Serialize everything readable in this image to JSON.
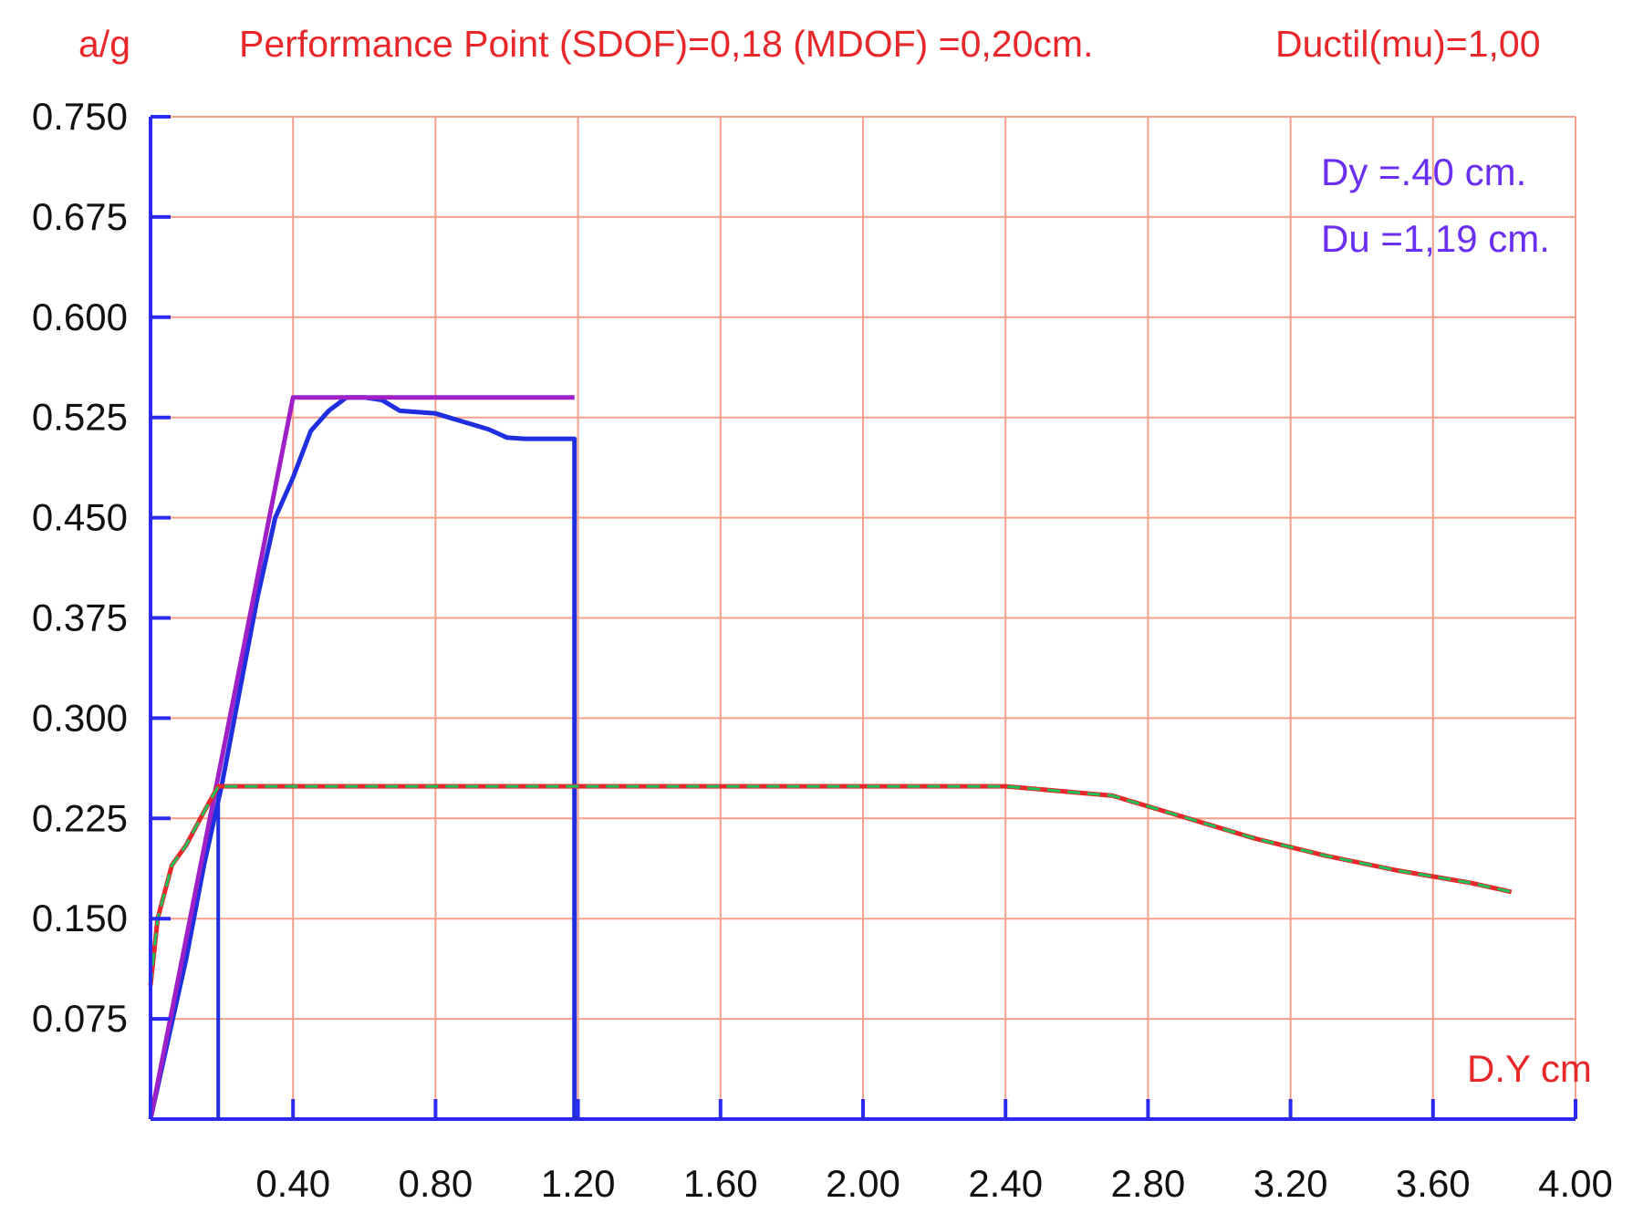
{
  "header": {
    "ylabel": "a/g",
    "performance_point": "Performance Point (SDOF)=0,18  (MDOF) =0,20cm.",
    "ductility": "Ductil(mu)=1,00"
  },
  "annotations": {
    "dy": "Dy =.40 cm.",
    "du": "Du =1,19 cm."
  },
  "colors": {
    "grid": "#f7a08a",
    "axis": "#2a2af0",
    "capacity_curve": "#1f2fe0",
    "bilinear_curve": "#a020c8",
    "demand_red": "#e8272a",
    "demand_green": "#1fbf5a",
    "text_red": "#e8272a",
    "text_annot": "#6a2ff0"
  },
  "chart_data": {
    "type": "line",
    "xlabel": "D.Y cm",
    "ylabel": "a/g",
    "xlim": [
      0,
      4.0
    ],
    "ylim": [
      0,
      0.75
    ],
    "x_ticks": [
      "0.40",
      "0.80",
      "1.20",
      "1.60",
      "2.00",
      "2.40",
      "2.80",
      "3.20",
      "3.60",
      "4.00"
    ],
    "y_ticks": [
      "0.750",
      "0.675",
      "0.600",
      "0.525",
      "0.450",
      "0.375",
      "0.300",
      "0.225",
      "0.150",
      "0.075"
    ],
    "grid": true,
    "series": [
      {
        "key": "capacity",
        "color": "#1f2fe0",
        "x": [
          0.0,
          0.05,
          0.1,
          0.15,
          0.2,
          0.25,
          0.3,
          0.35,
          0.4,
          0.45,
          0.5,
          0.55,
          0.6,
          0.65,
          0.7,
          0.8,
          0.85,
          0.9,
          0.95,
          1.0,
          1.05,
          1.1,
          1.19,
          1.19
        ],
        "y": [
          0.0,
          0.06,
          0.12,
          0.19,
          0.25,
          0.32,
          0.39,
          0.45,
          0.48,
          0.515,
          0.53,
          0.54,
          0.54,
          0.538,
          0.53,
          0.528,
          0.524,
          0.52,
          0.516,
          0.51,
          0.509,
          0.509,
          0.509,
          0.0
        ]
      },
      {
        "key": "capacity-boundary",
        "color": "#1f2fe0",
        "x": [
          0.19,
          0.19
        ],
        "y": [
          0.0,
          0.25
        ]
      },
      {
        "key": "bilinear",
        "color": "#a020c8",
        "x": [
          0.0,
          0.4,
          1.19
        ],
        "y": [
          0.0,
          0.54,
          0.54
        ]
      },
      {
        "key": "demand-red",
        "color": "#e8272a",
        "x": [
          0.0,
          0.02,
          0.04,
          0.06,
          0.1,
          0.15,
          0.19,
          2.4,
          2.7,
          2.9,
          3.1,
          3.3,
          3.5,
          3.7,
          3.82
        ],
        "y": [
          0.1,
          0.15,
          0.17,
          0.19,
          0.205,
          0.23,
          0.249,
          0.249,
          0.242,
          0.226,
          0.21,
          0.197,
          0.186,
          0.177,
          0.17
        ]
      },
      {
        "key": "demand-green",
        "color": "#1fbf5a",
        "x": [
          0.0,
          0.02,
          0.04,
          0.06,
          0.1,
          0.15,
          0.19,
          2.4,
          2.7,
          2.9,
          3.1,
          3.3,
          3.5,
          3.7,
          3.82
        ],
        "y": [
          0.1,
          0.15,
          0.17,
          0.19,
          0.205,
          0.23,
          0.249,
          0.249,
          0.242,
          0.226,
          0.21,
          0.197,
          0.186,
          0.177,
          0.17
        ]
      }
    ]
  }
}
